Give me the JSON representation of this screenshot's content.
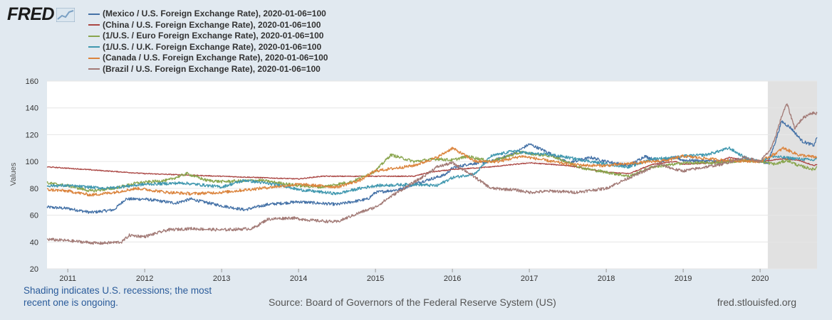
{
  "logo": {
    "text": "FRED"
  },
  "footer": {
    "recession_note": "Shading indicates U.S. recessions; the most recent one is ongoing.",
    "source": "Source: Board of Governors of the Federal Reserve System (US)",
    "site": "fred.stlouisfed.org"
  },
  "chart_data": {
    "type": "line",
    "title": "",
    "xlabel": "",
    "ylabel": "Values",
    "xlim": [
      2010.73,
      2020.74
    ],
    "ylim": [
      20,
      160
    ],
    "yticks": [
      20,
      40,
      60,
      80,
      100,
      120,
      140,
      160
    ],
    "xticks": [
      {
        "label": "2011",
        "value": 2011
      },
      {
        "label": "2012",
        "value": 2012
      },
      {
        "label": "2013",
        "value": 2013
      },
      {
        "label": "2014",
        "value": 2014
      },
      {
        "label": "2015",
        "value": 2015
      },
      {
        "label": "2016",
        "value": 2016
      },
      {
        "label": "2017",
        "value": 2017
      },
      {
        "label": "2018",
        "value": 2018
      },
      {
        "label": "2019",
        "value": 2019
      },
      {
        "label": "2020",
        "value": 2020
      }
    ],
    "recession": {
      "start": 2020.1,
      "end": 2020.74
    },
    "series": [
      {
        "name": "(Mexico / U.S. Foreign Exchange Rate), 2020-01-06=100",
        "color": "#4572a7",
        "points": [
          [
            2010.73,
            66
          ],
          [
            2011.0,
            65
          ],
          [
            2011.3,
            62
          ],
          [
            2011.6,
            64
          ],
          [
            2011.75,
            72
          ],
          [
            2012.0,
            72
          ],
          [
            2012.4,
            69
          ],
          [
            2012.6,
            72
          ],
          [
            2013.0,
            67
          ],
          [
            2013.3,
            64
          ],
          [
            2013.6,
            68
          ],
          [
            2014.0,
            70
          ],
          [
            2014.5,
            68
          ],
          [
            2014.9,
            72
          ],
          [
            2015.0,
            77
          ],
          [
            2015.3,
            79
          ],
          [
            2015.6,
            85
          ],
          [
            2015.9,
            90
          ],
          [
            2016.0,
            95
          ],
          [
            2016.2,
            98
          ],
          [
            2016.5,
            100
          ],
          [
            2016.8,
            106
          ],
          [
            2017.0,
            113
          ],
          [
            2017.2,
            108
          ],
          [
            2017.5,
            99
          ],
          [
            2017.8,
            103
          ],
          [
            2018.0,
            100
          ],
          [
            2018.3,
            97
          ],
          [
            2018.5,
            104
          ],
          [
            2018.7,
            100
          ],
          [
            2018.9,
            103
          ],
          [
            2019.0,
            101
          ],
          [
            2019.5,
            100
          ],
          [
            2019.8,
            102
          ],
          [
            2020.0,
            100
          ],
          [
            2020.1,
            99
          ],
          [
            2020.2,
            115
          ],
          [
            2020.28,
            130
          ],
          [
            2020.4,
            125
          ],
          [
            2020.55,
            115
          ],
          [
            2020.7,
            112
          ],
          [
            2020.74,
            118
          ]
        ]
      },
      {
        "name": "(China / U.S. Foreign Exchange Rate), 2020-01-06=100",
        "color": "#aa4643",
        "points": [
          [
            2010.73,
            96
          ],
          [
            2011.0,
            95
          ],
          [
            2011.5,
            93
          ],
          [
            2012.0,
            91
          ],
          [
            2012.5,
            90
          ],
          [
            2013.0,
            89
          ],
          [
            2013.5,
            88
          ],
          [
            2014.0,
            87
          ],
          [
            2014.3,
            89
          ],
          [
            2014.7,
            89
          ],
          [
            2015.0,
            89
          ],
          [
            2015.5,
            89
          ],
          [
            2015.7,
            92
          ],
          [
            2016.0,
            94
          ],
          [
            2016.5,
            96
          ],
          [
            2017.0,
            99
          ],
          [
            2017.5,
            97
          ],
          [
            2018.0,
            92
          ],
          [
            2018.3,
            91
          ],
          [
            2018.6,
            98
          ],
          [
            2018.9,
            100
          ],
          [
            2019.0,
            98
          ],
          [
            2019.4,
            99
          ],
          [
            2019.6,
            103
          ],
          [
            2019.8,
            101
          ],
          [
            2020.0,
            100
          ],
          [
            2020.3,
            102
          ],
          [
            2020.5,
            101
          ],
          [
            2020.7,
            97
          ],
          [
            2020.74,
            98
          ]
        ]
      },
      {
        "name": "(1/U.S. / Euro Foreign Exchange Rate), 2020-01-06=100",
        "color": "#89a54e",
        "points": [
          [
            2010.73,
            84
          ],
          [
            2011.0,
            82
          ],
          [
            2011.3,
            78
          ],
          [
            2011.6,
            80
          ],
          [
            2011.9,
            84
          ],
          [
            2012.3,
            86
          ],
          [
            2012.55,
            91
          ],
          [
            2012.8,
            86
          ],
          [
            2013.0,
            85
          ],
          [
            2013.5,
            86
          ],
          [
            2014.0,
            82
          ],
          [
            2014.3,
            81
          ],
          [
            2014.7,
            85
          ],
          [
            2015.0,
            93
          ],
          [
            2015.2,
            105
          ],
          [
            2015.5,
            100
          ],
          [
            2015.8,
            102
          ],
          [
            2016.0,
            101
          ],
          [
            2016.2,
            104
          ],
          [
            2016.5,
            100
          ],
          [
            2016.9,
            107
          ],
          [
            2017.0,
            106
          ],
          [
            2017.3,
            104
          ],
          [
            2017.7,
            95
          ],
          [
            2018.0,
            92
          ],
          [
            2018.3,
            89
          ],
          [
            2018.6,
            96
          ],
          [
            2018.9,
            98
          ],
          [
            2019.0,
            99
          ],
          [
            2019.5,
            99
          ],
          [
            2019.8,
            101
          ],
          [
            2020.0,
            100
          ],
          [
            2020.2,
            98
          ],
          [
            2020.35,
            101
          ],
          [
            2020.5,
            97
          ],
          [
            2020.7,
            94
          ],
          [
            2020.74,
            96
          ]
        ]
      },
      {
        "name": "(1/U.S. / U.K. Foreign Exchange Rate), 2020-01-06=100",
        "color": "#4198af",
        "points": [
          [
            2010.73,
            82
          ],
          [
            2011.0,
            82
          ],
          [
            2011.5,
            80
          ],
          [
            2012.0,
            83
          ],
          [
            2012.5,
            84
          ],
          [
            2013.0,
            81
          ],
          [
            2013.3,
            86
          ],
          [
            2013.8,
            82
          ],
          [
            2014.0,
            79
          ],
          [
            2014.5,
            76
          ],
          [
            2014.8,
            80
          ],
          [
            2015.0,
            82
          ],
          [
            2015.5,
            83
          ],
          [
            2015.8,
            82
          ],
          [
            2016.0,
            88
          ],
          [
            2016.3,
            91
          ],
          [
            2016.5,
            104
          ],
          [
            2016.8,
            108
          ],
          [
            2017.0,
            106
          ],
          [
            2017.3,
            105
          ],
          [
            2017.6,
            102
          ],
          [
            2018.0,
            98
          ],
          [
            2018.3,
            96
          ],
          [
            2018.6,
            102
          ],
          [
            2018.9,
            103
          ],
          [
            2019.0,
            104
          ],
          [
            2019.3,
            105
          ],
          [
            2019.6,
            110
          ],
          [
            2019.8,
            103
          ],
          [
            2020.0,
            100
          ],
          [
            2020.15,
            104
          ],
          [
            2020.3,
            103
          ],
          [
            2020.5,
            102
          ],
          [
            2020.7,
            101
          ],
          [
            2020.74,
            103
          ]
        ]
      },
      {
        "name": "(Canada / U.S. Foreign Exchange Rate), 2020-01-06=100",
        "color": "#db843d",
        "points": [
          [
            2010.73,
            79
          ],
          [
            2011.0,
            78
          ],
          [
            2011.3,
            75
          ],
          [
            2011.6,
            77
          ],
          [
            2011.9,
            80
          ],
          [
            2012.3,
            77
          ],
          [
            2012.6,
            76
          ],
          [
            2013.0,
            77
          ],
          [
            2013.5,
            80
          ],
          [
            2014.0,
            83
          ],
          [
            2014.5,
            81
          ],
          [
            2014.8,
            86
          ],
          [
            2015.0,
            93
          ],
          [
            2015.5,
            97
          ],
          [
            2015.8,
            103
          ],
          [
            2016.0,
            110
          ],
          [
            2016.3,
            100
          ],
          [
            2016.6,
            100
          ],
          [
            2016.9,
            104
          ],
          [
            2017.0,
            103
          ],
          [
            2017.5,
            98
          ],
          [
            2017.8,
            97
          ],
          [
            2018.0,
            97
          ],
          [
            2018.4,
            99
          ],
          [
            2018.8,
            101
          ],
          [
            2019.0,
            104
          ],
          [
            2019.5,
            101
          ],
          [
            2020.0,
            100
          ],
          [
            2020.2,
            106
          ],
          [
            2020.3,
            110
          ],
          [
            2020.5,
            105
          ],
          [
            2020.74,
            103
          ]
        ]
      },
      {
        "name": "(Brazil / U.S. Foreign Exchange Rate), 2020-01-06=100",
        "color": "#a27a76",
        "points": [
          [
            2010.73,
            42
          ],
          [
            2011.0,
            41
          ],
          [
            2011.4,
            39
          ],
          [
            2011.7,
            40
          ],
          [
            2011.8,
            45
          ],
          [
            2012.0,
            44
          ],
          [
            2012.3,
            49
          ],
          [
            2012.6,
            50
          ],
          [
            2013.0,
            49
          ],
          [
            2013.4,
            50
          ],
          [
            2013.6,
            57
          ],
          [
            2013.9,
            58
          ],
          [
            2014.2,
            56
          ],
          [
            2014.5,
            55
          ],
          [
            2014.8,
            62
          ],
          [
            2015.0,
            66
          ],
          [
            2015.2,
            74
          ],
          [
            2015.6,
            88
          ],
          [
            2015.8,
            96
          ],
          [
            2016.0,
            99
          ],
          [
            2016.2,
            92
          ],
          [
            2016.5,
            80
          ],
          [
            2016.8,
            79
          ],
          [
            2017.0,
            77
          ],
          [
            2017.3,
            78
          ],
          [
            2017.6,
            77
          ],
          [
            2018.0,
            80
          ],
          [
            2018.3,
            88
          ],
          [
            2018.7,
            98
          ],
          [
            2018.9,
            94
          ],
          [
            2019.0,
            93
          ],
          [
            2019.5,
            98
          ],
          [
            2019.8,
            103
          ],
          [
            2020.0,
            100
          ],
          [
            2020.15,
            110
          ],
          [
            2020.3,
            137
          ],
          [
            2020.35,
            143
          ],
          [
            2020.45,
            125
          ],
          [
            2020.55,
            132
          ],
          [
            2020.65,
            136
          ],
          [
            2020.74,
            136
          ]
        ]
      }
    ]
  }
}
